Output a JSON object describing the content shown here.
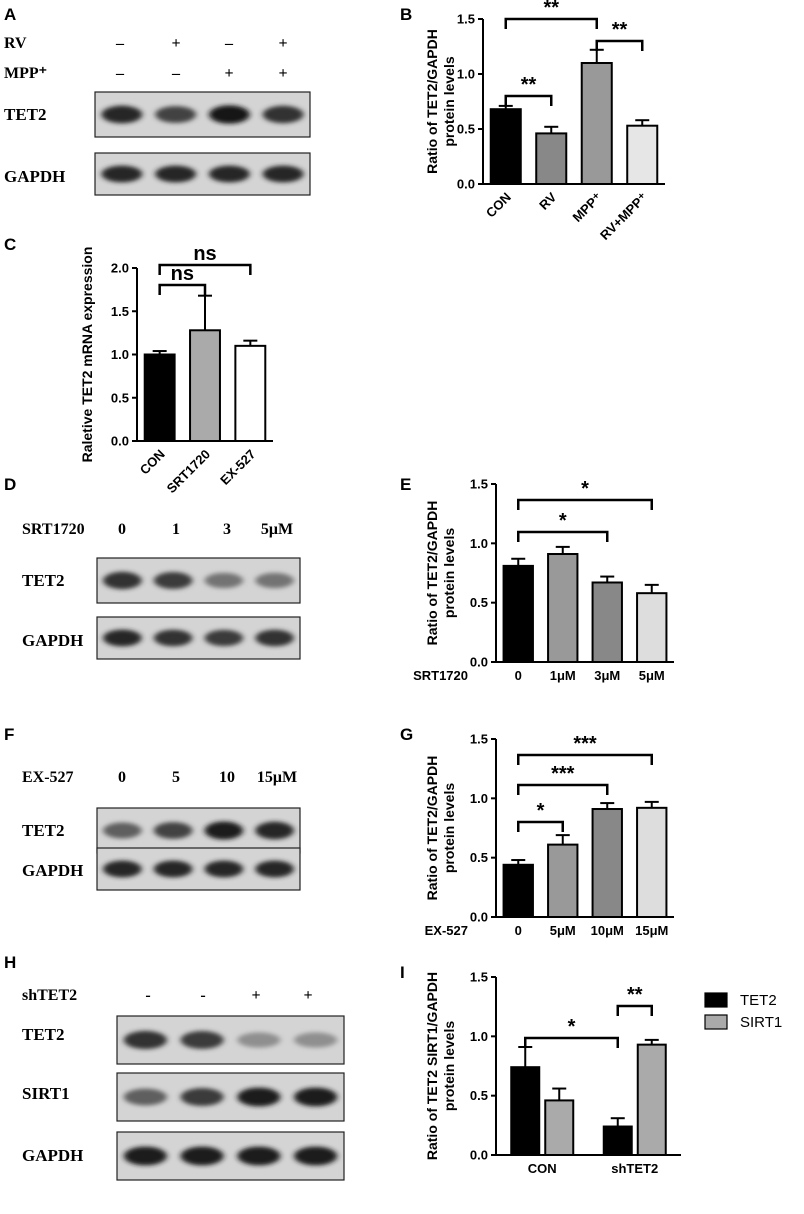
{
  "panels": {
    "A": {
      "letter": "A",
      "conditions": [
        {
          "label": "RV",
          "signs": [
            "–",
            "+",
            "–",
            "+"
          ]
        },
        {
          "label": "MPP⁺",
          "signs": [
            "–",
            "–",
            "+",
            "+"
          ]
        }
      ],
      "blots": [
        {
          "label": "TET2",
          "intensities": [
            0.85,
            0.7,
            0.95,
            0.8
          ]
        },
        {
          "label": "GAPDH",
          "intensities": [
            0.85,
            0.85,
            0.85,
            0.85
          ]
        }
      ]
    },
    "C_letter": "C",
    "D": {
      "letter": "D",
      "condition": {
        "label": "SRT1720",
        "values": [
          "0",
          "1",
          "3",
          "5μM"
        ]
      },
      "blots": [
        {
          "label": "TET2",
          "intensities": [
            0.8,
            0.75,
            0.45,
            0.45
          ]
        },
        {
          "label": "GAPDH",
          "intensities": [
            0.85,
            0.8,
            0.75,
            0.8
          ]
        }
      ]
    },
    "F": {
      "letter": "F",
      "condition": {
        "label": "EX-527",
        "values": [
          "0",
          "5",
          "10",
          "15μM"
        ]
      },
      "blots": [
        {
          "label": "TET2",
          "intensities": [
            0.55,
            0.7,
            0.9,
            0.85
          ]
        },
        {
          "label": "GAPDH",
          "intensities": [
            0.85,
            0.85,
            0.85,
            0.85
          ]
        }
      ]
    },
    "H": {
      "letter": "H",
      "condition": {
        "label": "shTET2",
        "signs": [
          "-",
          "-",
          "+",
          "+"
        ]
      },
      "blots": [
        {
          "label": "TET2",
          "intensities": [
            0.8,
            0.75,
            0.3,
            0.3
          ]
        },
        {
          "label": "SIRT1",
          "intensities": [
            0.55,
            0.75,
            0.9,
            0.9
          ]
        },
        {
          "label": "GAPDH",
          "intensities": [
            0.9,
            0.9,
            0.9,
            0.9
          ]
        }
      ]
    }
  },
  "chart_data": [
    {
      "id": "B",
      "type": "bar",
      "ylabel": "Ratio of TET2/GAPDH\nprotein levels",
      "categories": [
        "CON",
        "RV",
        "MPP⁺",
        "RV+MPP⁺"
      ],
      "values": [
        0.68,
        0.46,
        1.1,
        0.53
      ],
      "errors": [
        0.03,
        0.06,
        0.12,
        0.05
      ],
      "colors": [
        "#000000",
        "#888888",
        "#999999",
        "#e6e6e6"
      ],
      "ylim": [
        0,
        1.5
      ],
      "yticks": [
        "0.0",
        "0.5",
        "1.0",
        "1.5"
      ],
      "significance": [
        {
          "from": 0,
          "to": 2,
          "label": "**"
        },
        {
          "from": 0,
          "to": 1,
          "label": "**"
        },
        {
          "from": 2,
          "to": 3,
          "label": "**"
        }
      ]
    },
    {
      "id": "C",
      "type": "bar",
      "ylabel": "Raletive TET2 mRNA expression",
      "categories": [
        "CON",
        "SRT1720",
        "EX-527"
      ],
      "values": [
        1.0,
        1.28,
        1.1
      ],
      "errors": [
        0.04,
        0.4,
        0.06
      ],
      "colors": [
        "#000000",
        "#aaaaaa",
        "#ffffff"
      ],
      "ylim": [
        0,
        2.0
      ],
      "yticks": [
        "0.0",
        "0.5",
        "1.0",
        "1.5",
        "2.0"
      ],
      "significance": [
        {
          "from": 0,
          "to": 2,
          "label": "ns"
        },
        {
          "from": 0,
          "to": 1,
          "label": "ns"
        }
      ]
    },
    {
      "id": "E",
      "type": "bar",
      "ylabel": "Ratio of TET2/GAPDH\nprotein levels",
      "xtitle": "SRT1720",
      "categories": [
        "0",
        "1μM",
        "3μM",
        "5μM"
      ],
      "values": [
        0.81,
        0.91,
        0.67,
        0.58
      ],
      "errors": [
        0.06,
        0.06,
        0.05,
        0.07
      ],
      "colors": [
        "#000000",
        "#999999",
        "#888888",
        "#dddddd"
      ],
      "ylim": [
        0,
        1.5
      ],
      "yticks": [
        "0.0",
        "0.5",
        "1.0",
        "1.5"
      ],
      "significance": [
        {
          "from": 0,
          "to": 3,
          "label": "*"
        },
        {
          "from": 0,
          "to": 2,
          "label": "*"
        }
      ]
    },
    {
      "id": "G",
      "type": "bar",
      "ylabel": "Ratio of TET2/GAPDH\nprotein levels",
      "xtitle": "EX-527",
      "categories": [
        "0",
        "5μM",
        "10μM",
        "15μM"
      ],
      "values": [
        0.44,
        0.61,
        0.91,
        0.92
      ],
      "errors": [
        0.04,
        0.08,
        0.05,
        0.05
      ],
      "colors": [
        "#000000",
        "#999999",
        "#888888",
        "#dddddd"
      ],
      "ylim": [
        0,
        1.5
      ],
      "yticks": [
        "0.0",
        "0.5",
        "1.0",
        "1.5"
      ],
      "significance": [
        {
          "from": 0,
          "to": 3,
          "label": "***"
        },
        {
          "from": 0,
          "to": 2,
          "label": "***"
        },
        {
          "from": 0,
          "to": 1,
          "label": "*"
        }
      ]
    },
    {
      "id": "I",
      "type": "bar",
      "ylabel": "Ratio of TET2 SIRT1/GAPDH\nprotein levels",
      "categories": [
        "CON",
        "shTET2"
      ],
      "series": [
        {
          "name": "TET2",
          "values": [
            0.74,
            0.24
          ],
          "errors": [
            0.17,
            0.07
          ],
          "color": "#000000"
        },
        {
          "name": "SIRT1",
          "values": [
            0.46,
            0.93
          ],
          "errors": [
            0.1,
            0.04
          ],
          "color": "#aaaaaa"
        }
      ],
      "ylim": [
        0,
        1.5
      ],
      "yticks": [
        "0.0",
        "0.5",
        "1.0",
        "1.5"
      ],
      "significance": [
        {
          "from": "1:0",
          "to": "1:1",
          "label": "**"
        },
        {
          "from": "0:0",
          "to": "1:0",
          "label": "*"
        }
      ],
      "legend": "right"
    }
  ]
}
